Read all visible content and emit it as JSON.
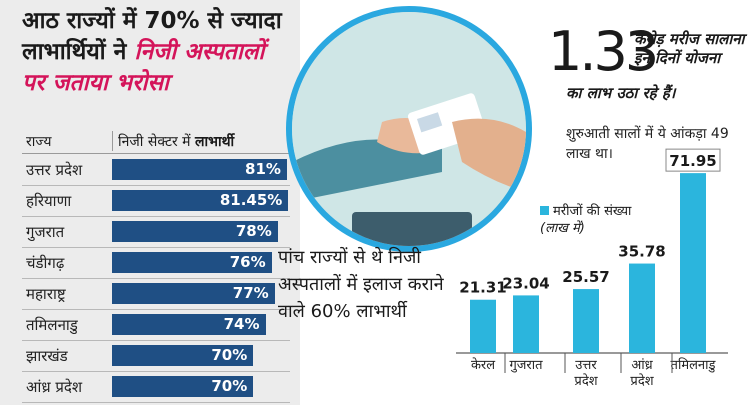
{
  "left": {
    "headline_1": "आठ राज्यों में 70% से ज्यादा",
    "headline_2": "लाभार्थियों ने ",
    "headline_hl1": "निजी अस्पतालों",
    "headline_hl2": "पर जताया भरोसा",
    "col_state": "राज्य",
    "col_value_prefix": "निजी सेक्टर में ",
    "col_value_bold": "लाभार्थी",
    "bar_color": "#1f4f84"
  },
  "right": {
    "big_number": "1.33",
    "line_a": "करोड़ मरीज सालाना इन दिनों योजना",
    "line_b": "का लाभ उठा रहे हैं।",
    "line_c": "शुरुआती सालों में ये आंकड़ा 49 लाख था।",
    "five_states": "पांच राज्यों से थे निजी अस्पतालों में इलाज कराने वाले 60% लाभार्थी",
    "legend_main": "मरीजों की संख्या ",
    "legend_unit": "(लाख में)",
    "bar_color": "#2bb5dd",
    "accent": "#d4145a",
    "ring_color": "#2aa8e0"
  },
  "chart_data": [
    {
      "type": "bar",
      "orientation": "horizontal",
      "categories": [
        "उत्तर प्रदेश",
        "हरियाणा",
        "गुजरात",
        "चंडीगढ़",
        "महाराष्ट्र",
        "तमिलनाडु",
        "झारखंड",
        "आंध्र प्रदेश"
      ],
      "values": [
        81,
        81.45,
        78,
        76,
        77,
        74,
        70,
        70
      ],
      "labels": [
        "81%",
        "81.45%",
        "78%",
        "76%",
        "77%",
        "74%",
        "70%",
        "70%"
      ]
    },
    {
      "type": "bar",
      "categories": [
        "केरल",
        "गुजरात",
        "उत्तर प्रदेश",
        "आंध्र प्रदेश",
        "तमिलनाडु"
      ],
      "values": [
        21.31,
        23.04,
        25.57,
        35.78,
        71.95
      ],
      "labels": [
        "21.31",
        "23.04",
        "25.57",
        "35.78",
        "71.95"
      ]
    }
  ]
}
